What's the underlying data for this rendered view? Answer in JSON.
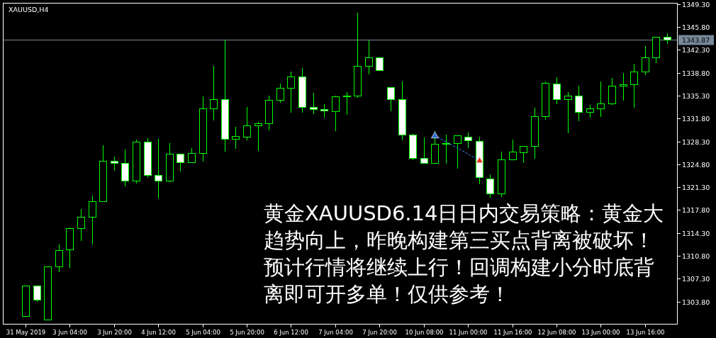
{
  "chart_data": {
    "type": "candlestick",
    "title": "XAUUSD,H4",
    "categories": [
      "31 May 2019",
      null,
      null,
      null,
      "3 Jun 04:00",
      null,
      null,
      null,
      "3 Jun 20:00",
      null,
      null,
      null,
      "4 Jun 12:00",
      null,
      null,
      null,
      "5 Jun 04:00",
      null,
      null,
      null,
      "5 Jun 20:00",
      null,
      null,
      null,
      "6 Jun 12:00",
      null,
      null,
      null,
      "7 Jun 04:00",
      null,
      null,
      null,
      "7 Jun 20:00",
      null,
      null,
      null,
      "10 Jun 08:00",
      null,
      null,
      null,
      "11 Jun 00:00",
      null,
      null,
      null,
      "11 Jun 16:00",
      null,
      null,
      null,
      "12 Jun 08:00",
      null,
      null,
      null,
      "13 Jun 00:00",
      null,
      null,
      null,
      "13 Jun 16:00",
      null,
      null
    ],
    "ohlc": [
      [
        1301.6,
        1306.2,
        1301.6,
        1306.2
      ],
      [
        1306.2,
        1306.2,
        1303.9,
        1304.1
      ],
      [
        1301.1,
        1309.3,
        1301.1,
        1309.2
      ],
      [
        1309.2,
        1312.6,
        1308.4,
        1311.7
      ],
      [
        1311.8,
        1315.2,
        1309.1,
        1315.0
      ],
      [
        1315.0,
        1318.1,
        1313.2,
        1316.8
      ],
      [
        1316.8,
        1320.1,
        1312.6,
        1319.1
      ],
      [
        1319.1,
        1327.8,
        1319.1,
        1325.3
      ],
      [
        1325.3,
        1326.1,
        1323.9,
        1325.0
      ],
      [
        1325.0,
        1327.2,
        1321.5,
        1322.3
      ],
      [
        1322.3,
        1328.7,
        1322.0,
        1328.3
      ],
      [
        1328.3,
        1328.9,
        1322.8,
        1323.2
      ],
      [
        1323.2,
        1328.8,
        1319.7,
        1322.3
      ],
      [
        1322.3,
        1328.1,
        1322.2,
        1326.4
      ],
      [
        1326.4,
        1326.5,
        1323.8,
        1325.1
      ],
      [
        1325.1,
        1327.4,
        1325.1,
        1326.5
      ],
      [
        1326.5,
        1335.3,
        1325.3,
        1333.3
      ],
      [
        1333.3,
        1340.0,
        1331.6,
        1334.8
      ],
      [
        1334.8,
        1344.0,
        1326.8,
        1328.7
      ],
      [
        1328.7,
        1330.6,
        1327.3,
        1329.1
      ],
      [
        1329.0,
        1333.7,
        1328.6,
        1330.7
      ],
      [
        1330.7,
        1331.4,
        1327.0,
        1331.1
      ],
      [
        1331.1,
        1335.4,
        1330.1,
        1334.6
      ],
      [
        1334.6,
        1337.2,
        1334.3,
        1336.5
      ],
      [
        1336.5,
        1339.1,
        1332.8,
        1338.2
      ],
      [
        1338.2,
        1339.6,
        1332.8,
        1333.6
      ],
      [
        1333.6,
        1335.8,
        1332.6,
        1333.2
      ],
      [
        1333.2,
        1334.1,
        1332.0,
        1333.0
      ],
      [
        1332.9,
        1335.4,
        1330.0,
        1335.2
      ],
      [
        1335.2,
        1336.0,
        1332.5,
        1335.3
      ],
      [
        1335.3,
        1348.1,
        1335.1,
        1339.9
      ],
      [
        1339.9,
        1343.9,
        1338.7,
        1341.1
      ],
      [
        1341.1,
        1341.1,
        1339.2,
        1339.2
      ],
      [
        1336.6,
        1336.7,
        1333.0,
        1334.8
      ],
      [
        1334.8,
        1337.6,
        1328.6,
        1329.3
      ],
      [
        1329.3,
        1329.6,
        1325.5,
        1325.8
      ],
      [
        1325.8,
        1329.0,
        1325.0,
        1325.0
      ],
      [
        1325.0,
        1330.0,
        1325.0,
        1327.9
      ],
      [
        1327.9,
        1329.5,
        1325.0,
        1328.0
      ],
      [
        1328.0,
        1329.3,
        1324.2,
        1329.2
      ],
      [
        1329.0,
        1329.8,
        1327.4,
        1328.5
      ],
      [
        1328.4,
        1329.1,
        1321.9,
        1322.8
      ],
      [
        1322.6,
        1323.4,
        1319.8,
        1320.3
      ],
      [
        1320.3,
        1326.8,
        1319.9,
        1325.6
      ],
      [
        1325.5,
        1328.7,
        1325.5,
        1326.7
      ],
      [
        1326.6,
        1327.6,
        1325.1,
        1327.6
      ],
      [
        1327.6,
        1333.6,
        1325.8,
        1332.2
      ],
      [
        1332.2,
        1337.6,
        1331.7,
        1337.2
      ],
      [
        1337.1,
        1338.2,
        1334.1,
        1334.8
      ],
      [
        1334.8,
        1336.0,
        1329.7,
        1335.3
      ],
      [
        1335.3,
        1336.9,
        1331.5,
        1332.8
      ],
      [
        1332.8,
        1334.0,
        1332.1,
        1333.4
      ],
      [
        1333.4,
        1337.6,
        1332.2,
        1334.1
      ],
      [
        1334.1,
        1338.1,
        1334.0,
        1336.8
      ],
      [
        1336.8,
        1338.9,
        1334.7,
        1337.0
      ],
      [
        1337.0,
        1340.3,
        1333.6,
        1339.0
      ],
      [
        1339.0,
        1343.0,
        1338.6,
        1341.1
      ],
      [
        1341.1,
        1344.3,
        1340.4,
        1344.3
      ],
      [
        1344.3,
        1344.9,
        1343.3,
        1343.9
      ]
    ],
    "color": "#00ff00",
    "colors": [
      "#000000",
      "#ffffff",
      "#000000",
      "#000000",
      "#000000",
      "#000000",
      "#000000",
      "#000000",
      "#ffffff",
      "#ffffff",
      "#000000",
      "#ffffff",
      "#ffffff",
      "#000000",
      "#ffffff",
      "#000000",
      "#000000",
      "#000000",
      "#ffffff",
      "#000000",
      "#000000",
      "#000000",
      "#000000",
      "#000000",
      "#000000",
      "#ffffff",
      "#ffffff",
      "#ffffff",
      "#000000",
      "#000000",
      "#000000",
      "#000000",
      "#ffffff",
      "#ffffff",
      "#ffffff",
      "#ffffff",
      "#ffffff",
      "#000000",
      "#000000",
      "#000000",
      "#ffffff",
      "#ffffff",
      "#ffffff",
      "#000000",
      "#000000",
      "#000000",
      "#000000",
      "#000000",
      "#ffffff",
      "#000000",
      "#ffffff",
      "#000000",
      "#000000",
      "#000000",
      "#000000",
      "#000000",
      "#000000",
      "#000000",
      "#ffffff"
    ],
    "series": [
      {
        "type": "line",
        "line_style": "dotted",
        "marker": "triangle",
        "color": "#2f6fd0",
        "colors": [
          null,
          null,
          null,
          null,
          null,
          null,
          null,
          null,
          null,
          null,
          null,
          null,
          null,
          null,
          null,
          null,
          null,
          null,
          null,
          null,
          null,
          null,
          null,
          null,
          null,
          null,
          null,
          null,
          null,
          null,
          null,
          null,
          null,
          null,
          null,
          null,
          null,
          "#2f6fd0",
          null,
          null,
          null,
          "#e8331c",
          null,
          null,
          null,
          null,
          null,
          null,
          null,
          null,
          null,
          null,
          null,
          null,
          null,
          null,
          null,
          null,
          null
        ],
        "values": [
          null,
          null,
          null,
          null,
          null,
          null,
          null,
          null,
          null,
          null,
          null,
          null,
          null,
          null,
          null,
          null,
          null,
          null,
          null,
          null,
          null,
          null,
          null,
          null,
          null,
          null,
          null,
          null,
          null,
          null,
          null,
          null,
          null,
          null,
          null,
          null,
          null,
          1329.2,
          null,
          null,
          null,
          1325.4,
          null,
          null,
          null,
          null,
          null,
          null,
          null,
          null,
          null,
          null,
          null,
          null,
          null,
          null,
          null,
          null,
          null
        ]
      }
    ],
    "ylim": [
      1300.4,
      1349.5
    ],
    "yticks": [
      {
        "value": 1349.3,
        "label": "1349.30"
      },
      {
        "value": 1345.8,
        "label": "1345.80"
      },
      {
        "value": 1342.3,
        "label": "1342.30"
      },
      {
        "value": 1338.8,
        "label": "1338.80"
      },
      {
        "value": 1335.3,
        "label": "1335.30"
      },
      {
        "value": 1331.8,
        "label": "1331.80"
      },
      {
        "value": 1328.3,
        "label": "1328.30"
      },
      {
        "value": 1324.8,
        "label": "1324.80"
      },
      {
        "value": 1321.3,
        "label": "1321.30"
      },
      {
        "value": 1317.8,
        "label": "1317.80"
      },
      {
        "value": 1314.3,
        "label": "1314.30"
      },
      {
        "value": 1310.8,
        "label": "1310.80"
      },
      {
        "value": 1307.3,
        "label": "1307.30"
      },
      {
        "value": 1303.8,
        "label": "1303.80"
      }
    ],
    "ref_lines": [
      {
        "axis": "y",
        "value": 1343.87,
        "label": "1343.87",
        "color": "#778899"
      }
    ],
    "annotations": [
      "黄金XAUUSD6.14日日内交易策略：黄金大趋势向上，昨晚构建第三买点背离被破坏！预计行情将继续上行！回调构建小分时底背离即可开多单！仅供参考！"
    ]
  }
}
